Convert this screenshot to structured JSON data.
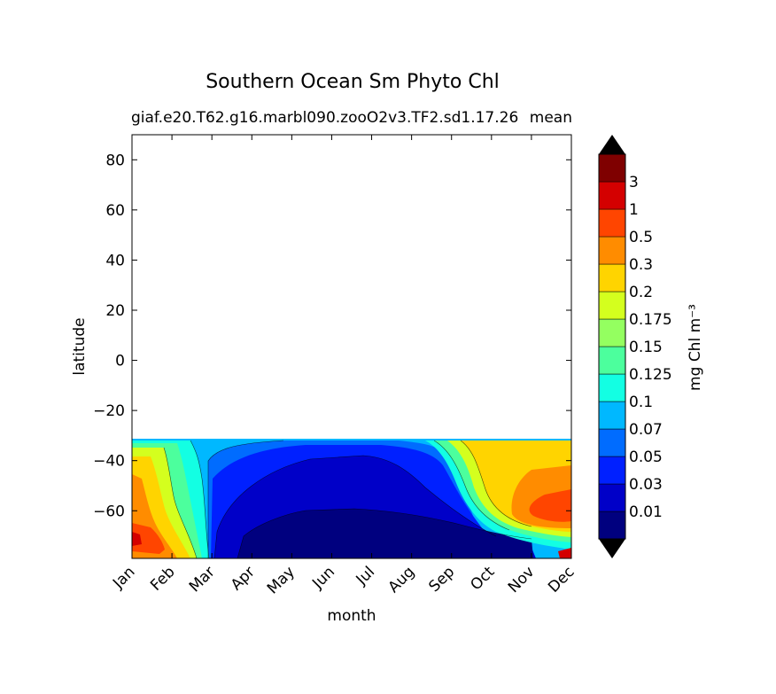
{
  "chart_data": {
    "type": "contourf",
    "title": "Southern Ocean Sm Phyto Chl",
    "subtitle_left": "giaf.e20.T62.g16.marbl090.zooO2v3.TF2.sd1.17.26",
    "subtitle_right": "mean",
    "xlabel": "month",
    "ylabel": "latitude",
    "x_ticks": [
      "Jan",
      "Feb",
      "Mar",
      "Apr",
      "May",
      "Jun",
      "Jul",
      "Aug",
      "Sep",
      "Oct",
      "Nov",
      "Dec"
    ],
    "y_ticks": [
      80,
      60,
      40,
      20,
      0,
      -20,
      -40,
      -60
    ],
    "y_tick_labels": [
      "80",
      "60",
      "40",
      "20",
      "0",
      "−20",
      "−40",
      "−60"
    ],
    "ylim": [
      -79,
      90
    ],
    "data_lat_range": [
      -79,
      -31.5
    ],
    "colorbar": {
      "label": "mg Chl m⁻³",
      "levels": [
        "0.01",
        "0.03",
        "0.05",
        "0.07",
        "0.1",
        "0.125",
        "0.15",
        "0.175",
        "0.2",
        "0.3",
        "0.5",
        "1",
        "3"
      ],
      "colors": [
        "#00007f",
        "#0000c8",
        "#0020ff",
        "#006cff",
        "#00b8ff",
        "#13ffe3",
        "#4cff9d",
        "#94ff60",
        "#d4ff1e",
        "#ffd400",
        "#ff8c00",
        "#ff4500",
        "#d40000",
        "#7f0000"
      ],
      "extend_min_color": "#000000",
      "extend_max_color": "#000000"
    },
    "grid": false,
    "legend": "colorbar-right"
  }
}
